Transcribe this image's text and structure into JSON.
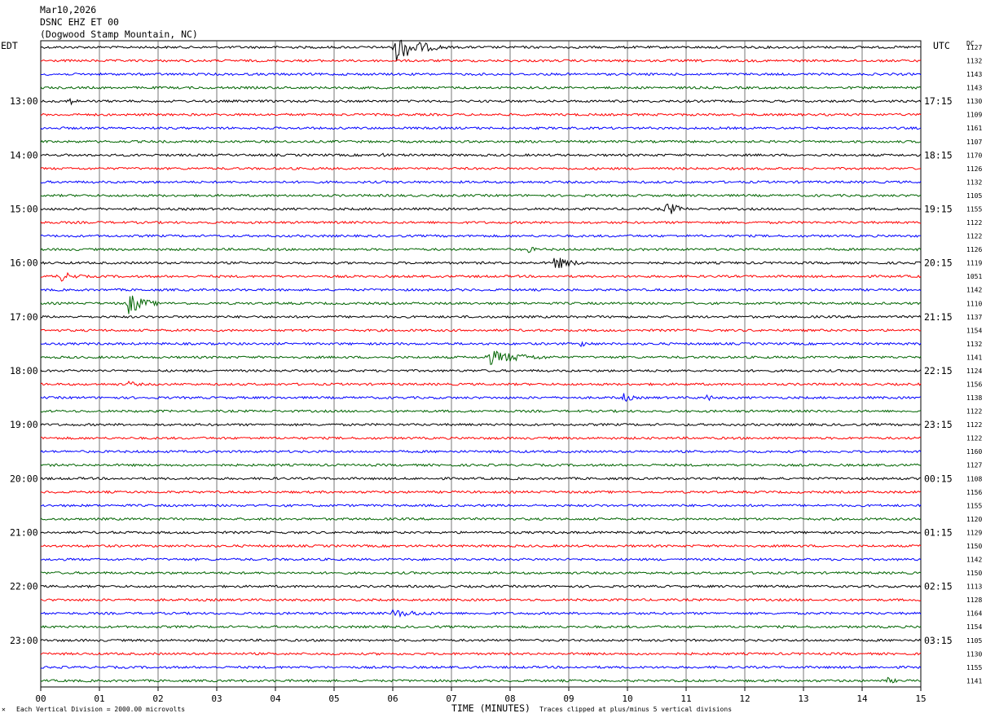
{
  "header": {
    "date": "Mar10,2026",
    "channel": "DSNC EHZ ET 00",
    "location": "(Dogwood Stamp Mountain, NC)"
  },
  "labels": {
    "left_tz": "EDT",
    "right_tz": "UTC",
    "dc_header": "DC",
    "x_title": "TIME (MINUTES)",
    "scale_note": "Each Vertical Division = 2000.00 microvolts",
    "clip_note": "Traces clipped at plus/minus 5 vertical divisions",
    "corner_mark": "✕"
  },
  "chart_data": {
    "type": "line",
    "title": "DSNC EHZ ET 00",
    "xlabel": "TIME (MINUTES)",
    "xlim": [
      0,
      15
    ],
    "x_ticks": [
      "00",
      "01",
      "02",
      "03",
      "04",
      "05",
      "06",
      "07",
      "08",
      "09",
      "10",
      "11",
      "12",
      "13",
      "14",
      "15"
    ],
    "trace_colors": [
      "#000000",
      "#ff0000",
      "#0000ff",
      "#006400"
    ],
    "left_hour_labels": [
      "13:00",
      "14:00",
      "15:00",
      "16:00",
      "17:00",
      "18:00",
      "19:00",
      "20:00",
      "21:00",
      "22:00",
      "23:00"
    ],
    "right_hour_labels": [
      "17:15",
      "18:15",
      "19:15",
      "20:15",
      "21:15",
      "22:15",
      "23:15",
      "00:15",
      "01:15",
      "02:15",
      "03:15"
    ],
    "dc_offsets": [
      "1127",
      "1132",
      "1143",
      "1143",
      "1130",
      "1109",
      "1161",
      "1107",
      "1170",
      "1126",
      "1132",
      "1105",
      "1155",
      "1122",
      "1122",
      "1126",
      "1119",
      "1051",
      "1142",
      "1110",
      "1137",
      "1154",
      "1132",
      "1141",
      "1124",
      "1156",
      "1138",
      "1122",
      "1122",
      "1122",
      "1160",
      "1127",
      "1108",
      "1156",
      "1155",
      "1120",
      "1129",
      "1150",
      "1142",
      "1150",
      "1113",
      "1128",
      "1164",
      "1154",
      "1105",
      "1130",
      "1155",
      "1141"
    ],
    "events": [
      {
        "trace": 0,
        "minute": 6.05,
        "amplitude": 18,
        "duration_min": 0.9
      },
      {
        "trace": 4,
        "minute": 0.45,
        "amplitude": 6,
        "duration_min": 0.35
      },
      {
        "trace": 8,
        "minute": 5.8,
        "amplitude": 4,
        "duration_min": 0.3
      },
      {
        "trace": 12,
        "minute": 10.65,
        "amplitude": 11,
        "duration_min": 0.45
      },
      {
        "trace": 15,
        "minute": 8.3,
        "amplitude": 5,
        "duration_min": 0.3
      },
      {
        "trace": 16,
        "minute": 8.75,
        "amplitude": 9,
        "duration_min": 0.7
      },
      {
        "trace": 17,
        "minute": 0.3,
        "amplitude": 7,
        "duration_min": 0.7
      },
      {
        "trace": 19,
        "minute": 1.5,
        "amplitude": 14,
        "duration_min": 0.6
      },
      {
        "trace": 22,
        "minute": 9.2,
        "amplitude": 4,
        "duration_min": 0.6
      },
      {
        "trace": 23,
        "minute": 7.6,
        "amplitude": 10,
        "duration_min": 1.4
      },
      {
        "trace": 25,
        "minute": 1.5,
        "amplitude": 4,
        "duration_min": 0.5
      },
      {
        "trace": 26,
        "minute": 9.9,
        "amplitude": 7,
        "duration_min": 0.4
      },
      {
        "trace": 26,
        "minute": 11.35,
        "amplitude": 5,
        "duration_min": 0.3
      },
      {
        "trace": 42,
        "minute": 6.0,
        "amplitude": 5,
        "duration_min": 1.5
      },
      {
        "trace": 47,
        "minute": 14.4,
        "amplitude": 5,
        "duration_min": 0.4
      }
    ]
  }
}
